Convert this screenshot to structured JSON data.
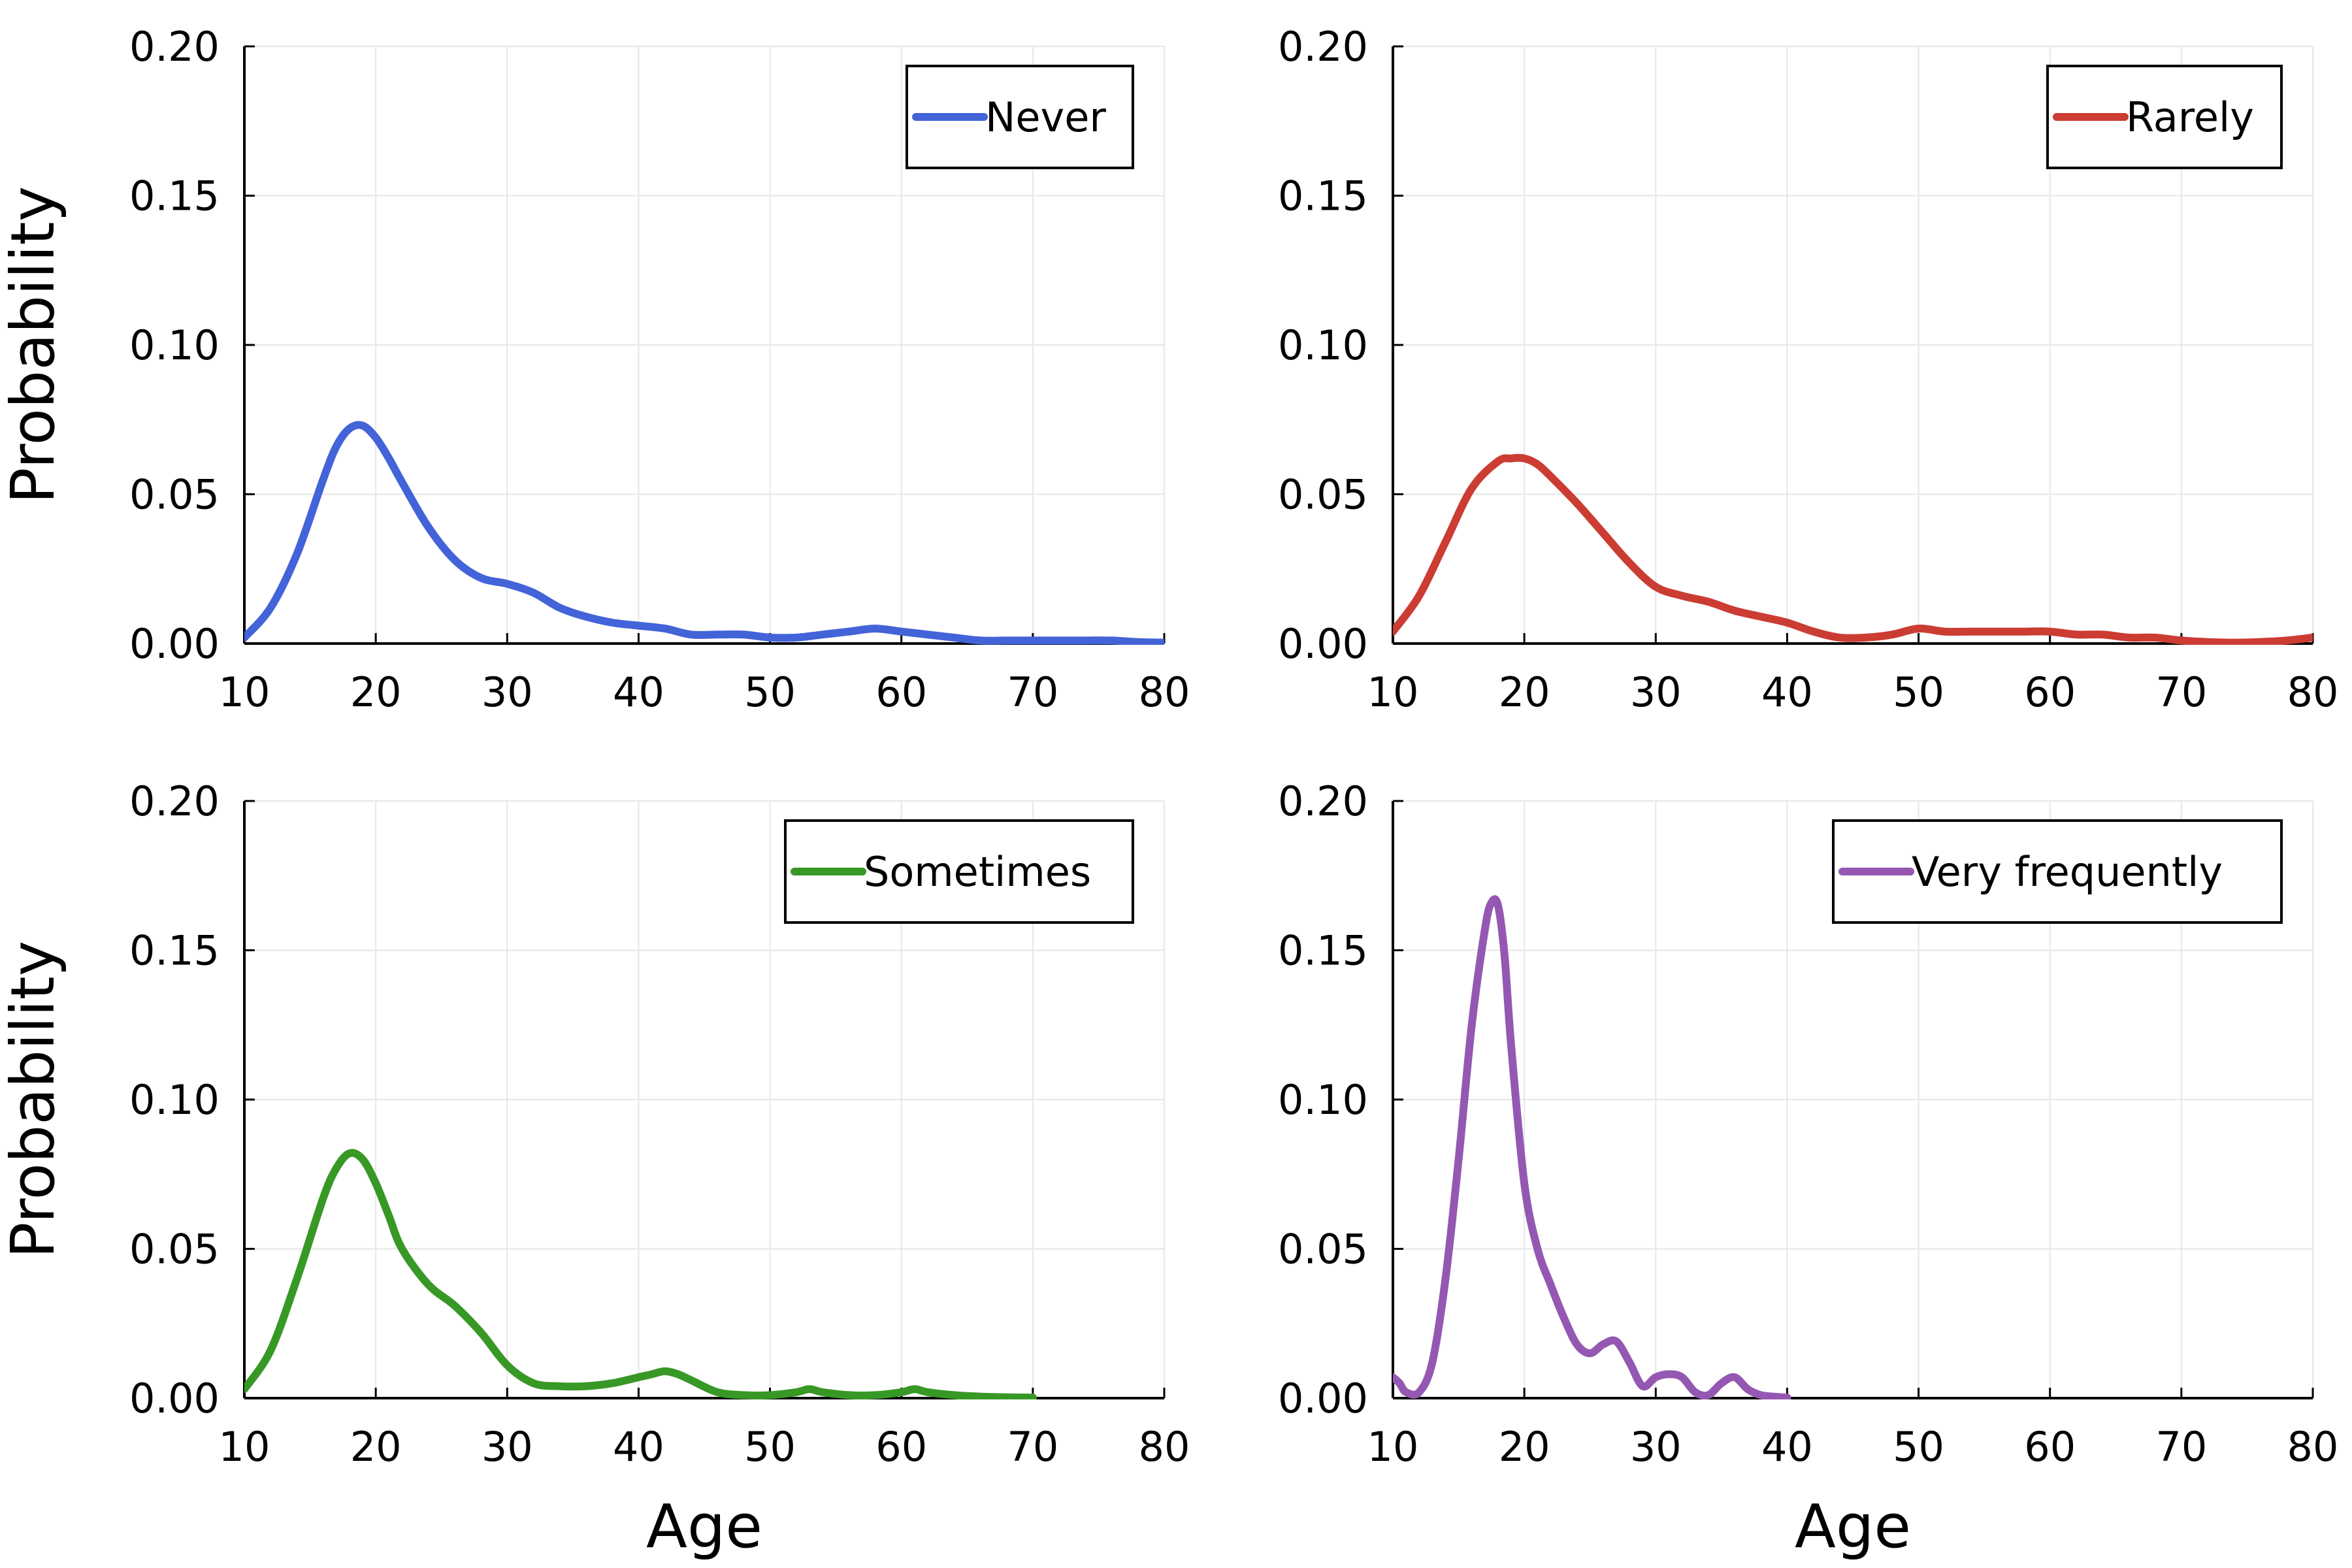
{
  "chart_data": [
    {
      "type": "line",
      "title": "",
      "xlabel": "",
      "ylabel": "Probability",
      "xlim": [
        10,
        80
      ],
      "ylim": [
        0,
        0.2
      ],
      "xticks": [
        "10",
        "20",
        "30",
        "40",
        "50",
        "60",
        "70",
        "80"
      ],
      "yticks": [
        "0.00",
        "0.05",
        "0.10",
        "0.15",
        "0.20"
      ],
      "grid": true,
      "legend_position": "top-right",
      "series": [
        {
          "name": "Never",
          "color": "#4363d8",
          "x": [
            10,
            12,
            14,
            16,
            17,
            18,
            19,
            20,
            21,
            22,
            24,
            26,
            28,
            30,
            32,
            34,
            36,
            38,
            40,
            42,
            44,
            46,
            48,
            50,
            52,
            54,
            56,
            58,
            60,
            62,
            64,
            66,
            68,
            70,
            72,
            74,
            76,
            78,
            80
          ],
          "y": [
            0.002,
            0.012,
            0.03,
            0.055,
            0.066,
            0.072,
            0.073,
            0.069,
            0.062,
            0.054,
            0.039,
            0.028,
            0.022,
            0.02,
            0.017,
            0.012,
            0.009,
            0.007,
            0.006,
            0.005,
            0.003,
            0.003,
            0.003,
            0.002,
            0.002,
            0.003,
            0.004,
            0.005,
            0.004,
            0.003,
            0.002,
            0.001,
            0.001,
            0.001,
            0.001,
            0.001,
            0.001,
            0.0005,
            0.0003
          ]
        }
      ]
    },
    {
      "type": "line",
      "title": "",
      "xlabel": "",
      "ylabel": "",
      "xlim": [
        10,
        80
      ],
      "ylim": [
        0,
        0.2
      ],
      "xticks": [
        "10",
        "20",
        "30",
        "40",
        "50",
        "60",
        "70",
        "80"
      ],
      "yticks": [
        "0.00",
        "0.05",
        "0.10",
        "0.15",
        "0.20"
      ],
      "grid": true,
      "legend_position": "top-right",
      "series": [
        {
          "name": "Rarely",
          "color": "#cb3c33",
          "x": [
            10,
            12,
            14,
            16,
            18,
            19,
            20,
            21,
            22,
            24,
            26,
            28,
            30,
            32,
            34,
            36,
            38,
            40,
            42,
            44,
            46,
            48,
            50,
            52,
            54,
            56,
            58,
            60,
            62,
            64,
            66,
            68,
            70,
            72,
            74,
            76,
            78,
            80
          ],
          "y": [
            0.004,
            0.016,
            0.034,
            0.052,
            0.061,
            0.062,
            0.062,
            0.06,
            0.056,
            0.047,
            0.037,
            0.027,
            0.019,
            0.016,
            0.014,
            0.011,
            0.009,
            0.007,
            0.004,
            0.002,
            0.002,
            0.003,
            0.005,
            0.004,
            0.004,
            0.004,
            0.004,
            0.004,
            0.003,
            0.003,
            0.002,
            0.002,
            0.001,
            0.0005,
            0.0003,
            0.0005,
            0.001,
            0.002
          ]
        }
      ]
    },
    {
      "type": "line",
      "title": "",
      "xlabel": "Age",
      "ylabel": "Probability",
      "xlim": [
        10,
        80
      ],
      "ylim": [
        0,
        0.2
      ],
      "xticks": [
        "10",
        "20",
        "30",
        "40",
        "50",
        "60",
        "70",
        "80"
      ],
      "yticks": [
        "0.00",
        "0.05",
        "0.10",
        "0.15",
        "0.20"
      ],
      "grid": true,
      "legend_position": "top-right",
      "series": [
        {
          "name": "Sometimes",
          "color": "#389826",
          "x": [
            10,
            12,
            14,
            16,
            17,
            18,
            19,
            20,
            21,
            22,
            24,
            26,
            28,
            30,
            32,
            34,
            36,
            38,
            40,
            41,
            42,
            43,
            44,
            46,
            48,
            50,
            52,
            53,
            54,
            56,
            58,
            60,
            61,
            62,
            64,
            66,
            68,
            70
          ],
          "y": [
            0.003,
            0.016,
            0.04,
            0.067,
            0.077,
            0.082,
            0.08,
            0.072,
            0.061,
            0.05,
            0.038,
            0.031,
            0.022,
            0.011,
            0.005,
            0.004,
            0.004,
            0.005,
            0.007,
            0.008,
            0.009,
            0.008,
            0.006,
            0.002,
            0.001,
            0.001,
            0.002,
            0.003,
            0.002,
            0.001,
            0.001,
            0.002,
            0.003,
            0.002,
            0.001,
            0.0005,
            0.0003,
            0.0002
          ]
        }
      ]
    },
    {
      "type": "line",
      "title": "",
      "xlabel": "Age",
      "ylabel": "",
      "xlim": [
        10,
        80
      ],
      "ylim": [
        0,
        0.2
      ],
      "xticks": [
        "10",
        "20",
        "30",
        "40",
        "50",
        "60",
        "70",
        "80"
      ],
      "yticks": [
        "0.00",
        "0.05",
        "0.10",
        "0.15",
        "0.20"
      ],
      "grid": true,
      "legend_position": "top-right",
      "series": [
        {
          "name": "Very frequently",
          "color": "#9558b2",
          "x": [
            10,
            10.5,
            11,
            12,
            13,
            14,
            15,
            16,
            17,
            17.5,
            18,
            18.5,
            19,
            20,
            21,
            22,
            23,
            24,
            25,
            26,
            27,
            28,
            29,
            30,
            31,
            32,
            33,
            34,
            35,
            36,
            37,
            38,
            39,
            40
          ],
          "y": [
            0.007,
            0.005,
            0.002,
            0.002,
            0.012,
            0.04,
            0.08,
            0.125,
            0.157,
            0.166,
            0.165,
            0.148,
            0.118,
            0.072,
            0.05,
            0.038,
            0.027,
            0.018,
            0.015,
            0.018,
            0.019,
            0.012,
            0.004,
            0.007,
            0.008,
            0.007,
            0.002,
            0.001,
            0.005,
            0.007,
            0.003,
            0.001,
            0.0005,
            0.0002
          ]
        }
      ]
    }
  ]
}
